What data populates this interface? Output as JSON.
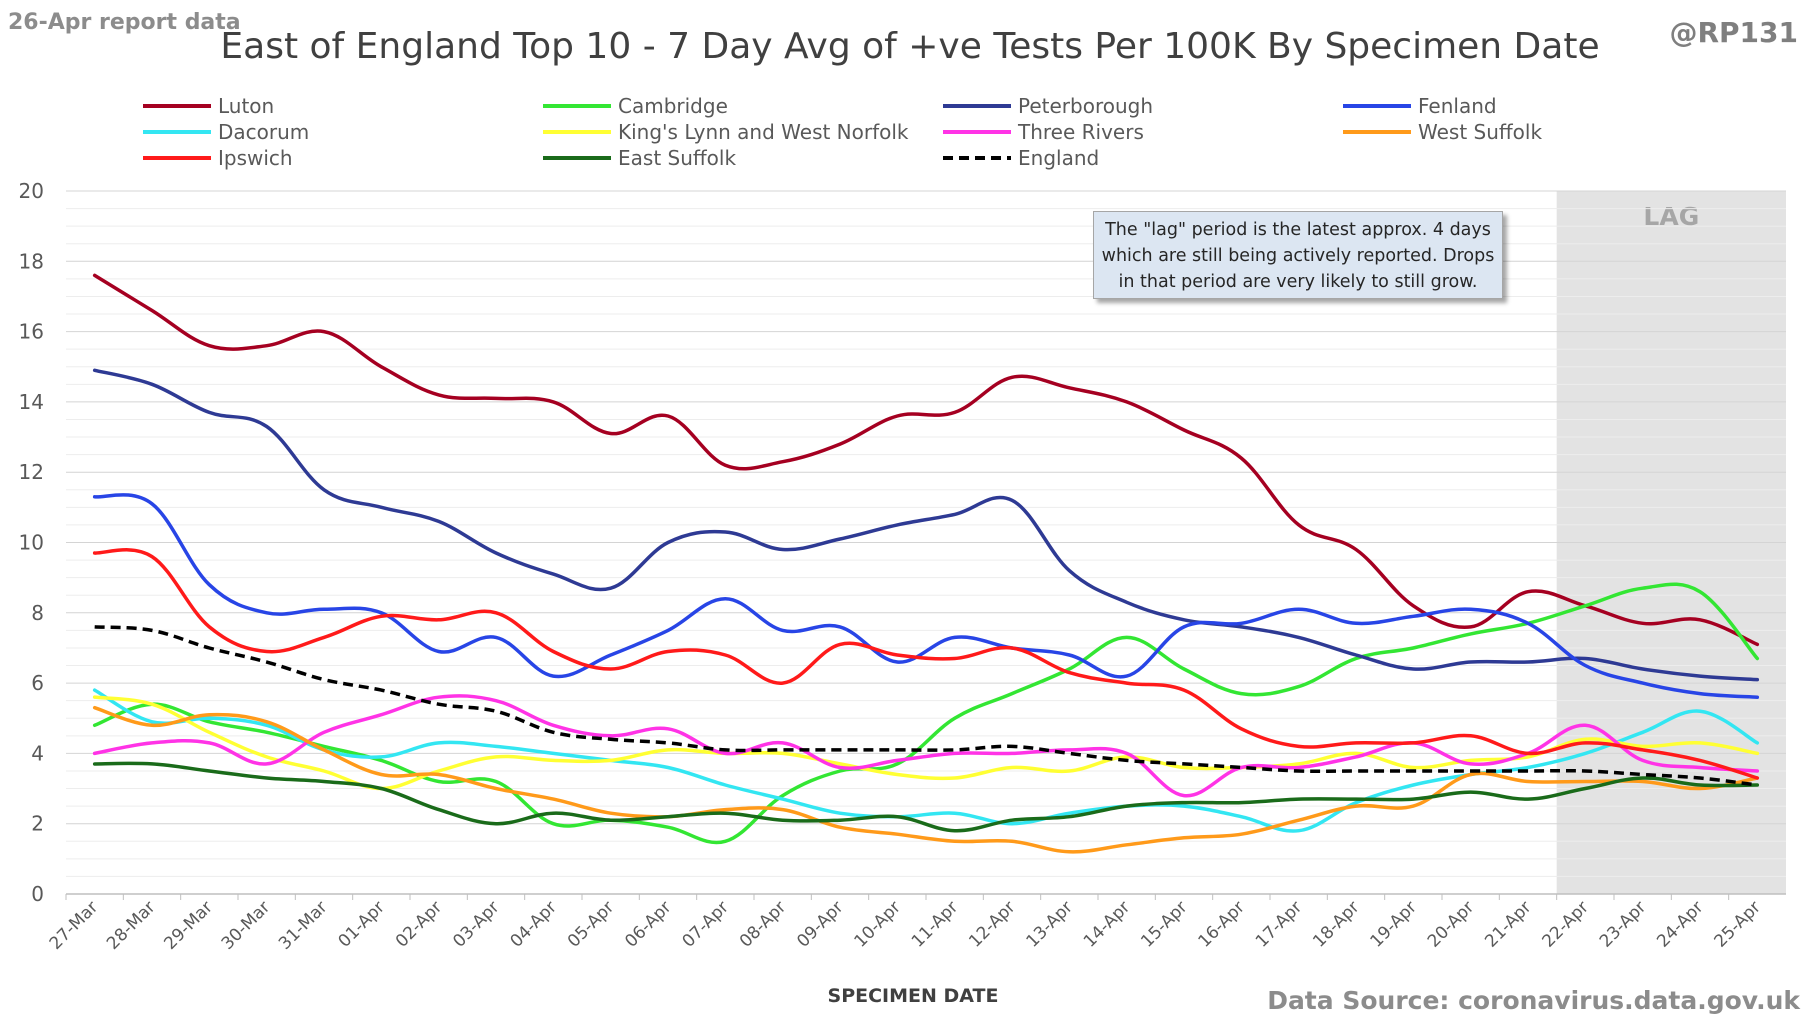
{
  "header": {
    "report_note": "26-Apr report data",
    "handle": "@RP131",
    "source": "Data Source: coronavirus.data.gov.uk"
  },
  "lag_note": "The \"lag\" period is the latest approx. 4 days which are still being actively reported.  Drops in that period are very likely to still grow.",
  "chart_data": {
    "type": "line",
    "title": "East of England Top 10 - 7 Day Avg of +ve Tests Per 100K By Specimen Date",
    "xlabel": "SPECIMEN DATE",
    "ylabel": "",
    "ylim": [
      0,
      20
    ],
    "yticks": [
      0,
      2,
      4,
      6,
      8,
      10,
      12,
      14,
      16,
      18,
      20
    ],
    "grid": true,
    "legend": "top",
    "lag_region": {
      "label": "LAG",
      "from": "22-Apr",
      "to": "25-Apr"
    },
    "categories": [
      "27-Mar",
      "28-Mar",
      "29-Mar",
      "30-Mar",
      "31-Mar",
      "01-Apr",
      "02-Apr",
      "03-Apr",
      "04-Apr",
      "05-Apr",
      "06-Apr",
      "07-Apr",
      "08-Apr",
      "09-Apr",
      "10-Apr",
      "11-Apr",
      "12-Apr",
      "13-Apr",
      "14-Apr",
      "15-Apr",
      "16-Apr",
      "17-Apr",
      "18-Apr",
      "19-Apr",
      "20-Apr",
      "21-Apr",
      "22-Apr",
      "23-Apr",
      "24-Apr",
      "25-Apr"
    ],
    "series": [
      {
        "name": "Luton",
        "color": "#a50021",
        "dashed": false,
        "values": [
          17.6,
          16.6,
          15.6,
          15.6,
          16.0,
          15.0,
          14.2,
          14.1,
          14.0,
          13.1,
          13.6,
          12.2,
          12.3,
          12.8,
          13.6,
          13.7,
          14.7,
          14.4,
          14.0,
          13.2,
          12.4,
          10.5,
          9.8,
          8.2,
          7.6,
          8.6,
          8.2,
          7.7,
          7.8,
          7.1
        ]
      },
      {
        "name": "Cambridge",
        "color": "#33e633",
        "dashed": false,
        "values": [
          4.8,
          5.4,
          4.9,
          4.6,
          4.2,
          3.8,
          3.2,
          3.2,
          2.0,
          2.1,
          1.9,
          1.5,
          2.8,
          3.5,
          3.7,
          5.0,
          5.7,
          6.4,
          7.3,
          6.4,
          5.7,
          5.9,
          6.7,
          7.0,
          7.4,
          7.7,
          8.2,
          8.7,
          8.6,
          6.7
        ]
      },
      {
        "name": "Peterborough",
        "color": "#2e3a94",
        "dashed": false,
        "values": [
          14.9,
          14.5,
          13.7,
          13.3,
          11.5,
          11.0,
          10.6,
          9.7,
          9.1,
          8.7,
          10.0,
          10.3,
          9.8,
          10.1,
          10.5,
          10.8,
          11.2,
          9.2,
          8.3,
          7.8,
          7.6,
          7.3,
          6.8,
          6.4,
          6.6,
          6.6,
          6.7,
          6.4,
          6.2,
          6.1
        ]
      },
      {
        "name": "Fenland",
        "color": "#2845e6",
        "dashed": false,
        "values": [
          11.3,
          11.1,
          8.8,
          8.0,
          8.1,
          8.0,
          6.9,
          7.3,
          6.2,
          6.8,
          7.5,
          8.4,
          7.5,
          7.6,
          6.6,
          7.3,
          7.0,
          6.8,
          6.2,
          7.6,
          7.7,
          8.1,
          7.7,
          7.9,
          8.1,
          7.7,
          6.5,
          6.0,
          5.7,
          5.6
        ]
      },
      {
        "name": "Dacorum",
        "color": "#33e6f2",
        "dashed": false,
        "values": [
          5.8,
          4.9,
          5.0,
          4.8,
          4.1,
          3.9,
          4.3,
          4.2,
          4.0,
          3.8,
          3.6,
          3.1,
          2.7,
          2.3,
          2.2,
          2.3,
          2.0,
          2.3,
          2.5,
          2.5,
          2.2,
          1.8,
          2.6,
          3.1,
          3.4,
          3.6,
          4.0,
          4.6,
          5.2,
          4.3
        ]
      },
      {
        "name": "King's Lynn and West Norfolk",
        "color": "#ffff33",
        "dashed": false,
        "values": [
          5.6,
          5.4,
          4.6,
          3.9,
          3.5,
          3.0,
          3.5,
          3.9,
          3.8,
          3.8,
          4.1,
          4.0,
          4.0,
          3.7,
          3.4,
          3.3,
          3.6,
          3.5,
          3.9,
          3.6,
          3.6,
          3.7,
          4.0,
          3.6,
          3.8,
          3.9,
          4.4,
          4.2,
          4.3,
          4.0
        ]
      },
      {
        "name": "Three Rivers",
        "color": "#ff33e6",
        "dashed": false,
        "values": [
          4.0,
          4.3,
          4.3,
          3.7,
          4.6,
          5.1,
          5.6,
          5.5,
          4.8,
          4.5,
          4.7,
          4.0,
          4.3,
          3.6,
          3.8,
          4.0,
          4.0,
          4.1,
          4.0,
          2.8,
          3.6,
          3.6,
          3.9,
          4.3,
          3.7,
          4.0,
          4.8,
          3.8,
          3.6,
          3.5
        ]
      },
      {
        "name": "West Suffolk",
        "color": "#ff9a1a",
        "dashed": false,
        "values": [
          5.3,
          4.8,
          5.1,
          4.9,
          4.1,
          3.4,
          3.4,
          3.0,
          2.7,
          2.3,
          2.2,
          2.4,
          2.4,
          1.9,
          1.7,
          1.5,
          1.5,
          1.2,
          1.4,
          1.6,
          1.7,
          2.1,
          2.5,
          2.5,
          3.4,
          3.2,
          3.2,
          3.2,
          3.0,
          3.3
        ]
      },
      {
        "name": "Ipswich",
        "color": "#ff1a1a",
        "dashed": false,
        "values": [
          9.7,
          9.6,
          7.6,
          6.9,
          7.3,
          7.9,
          7.8,
          8.0,
          6.9,
          6.4,
          6.9,
          6.8,
          6.0,
          7.1,
          6.8,
          6.7,
          7.0,
          6.3,
          6.0,
          5.8,
          4.7,
          4.2,
          4.3,
          4.3,
          4.5,
          4.0,
          4.3,
          4.1,
          3.8,
          3.3
        ]
      },
      {
        "name": "East Suffolk",
        "color": "#1a6b1a",
        "dashed": false,
        "values": [
          3.7,
          3.7,
          3.5,
          3.3,
          3.2,
          3.0,
          2.4,
          2.0,
          2.3,
          2.1,
          2.2,
          2.3,
          2.1,
          2.1,
          2.2,
          1.8,
          2.1,
          2.2,
          2.5,
          2.6,
          2.6,
          2.7,
          2.7,
          2.7,
          2.9,
          2.7,
          3.0,
          3.3,
          3.1,
          3.1
        ]
      },
      {
        "name": "England",
        "color": "#000000",
        "dashed": true,
        "values": [
          7.6,
          7.5,
          7.0,
          6.6,
          6.1,
          5.8,
          5.4,
          5.2,
          4.6,
          4.4,
          4.3,
          4.1,
          4.1,
          4.1,
          4.1,
          4.1,
          4.2,
          4.0,
          3.8,
          3.7,
          3.6,
          3.5,
          3.5,
          3.5,
          3.5,
          3.5,
          3.5,
          3.4,
          3.3,
          3.1
        ]
      }
    ]
  }
}
